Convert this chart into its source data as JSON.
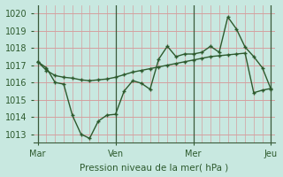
{
  "background_color": "#c8e8e0",
  "grid_color_major": "#e8d0d0",
  "grid_color_minor": "#e8d0d0",
  "line_color": "#2d5a2d",
  "xlabel": "Pression niveau de la mer( hPa )",
  "ylim": [
    1012.5,
    1020.5
  ],
  "yticks": [
    1013,
    1014,
    1015,
    1016,
    1017,
    1018,
    1019,
    1020
  ],
  "xtick_labels": [
    "Mar",
    "Ven",
    "Mer",
    "Jeu"
  ],
  "vline_positions": [
    0,
    9,
    18,
    27
  ],
  "n_points": 28,
  "series1": [
    1017.2,
    1016.85,
    1016.0,
    1015.9,
    1014.1,
    1013.0,
    1012.75,
    1013.75,
    1014.1,
    1014.15,
    1015.5,
    1016.1,
    1015.95,
    1015.6,
    1017.35,
    1018.1,
    1017.5,
    1017.65,
    1017.65,
    1017.75,
    1018.1,
    1017.75,
    1019.8,
    1019.1,
    1018.05,
    1017.5,
    1016.85,
    1015.6
  ],
  "series2": [
    1017.2,
    1016.7,
    1016.4,
    1016.3,
    1016.25,
    1016.15,
    1016.1,
    1016.15,
    1016.2,
    1016.3,
    1016.45,
    1016.6,
    1016.7,
    1016.8,
    1016.9,
    1017.0,
    1017.1,
    1017.2,
    1017.3,
    1017.4,
    1017.5,
    1017.55,
    1017.6,
    1017.65,
    1017.7,
    1015.4,
    1015.55,
    1015.65
  ],
  "figsize": [
    3.2,
    2.0
  ],
  "dpi": 100
}
